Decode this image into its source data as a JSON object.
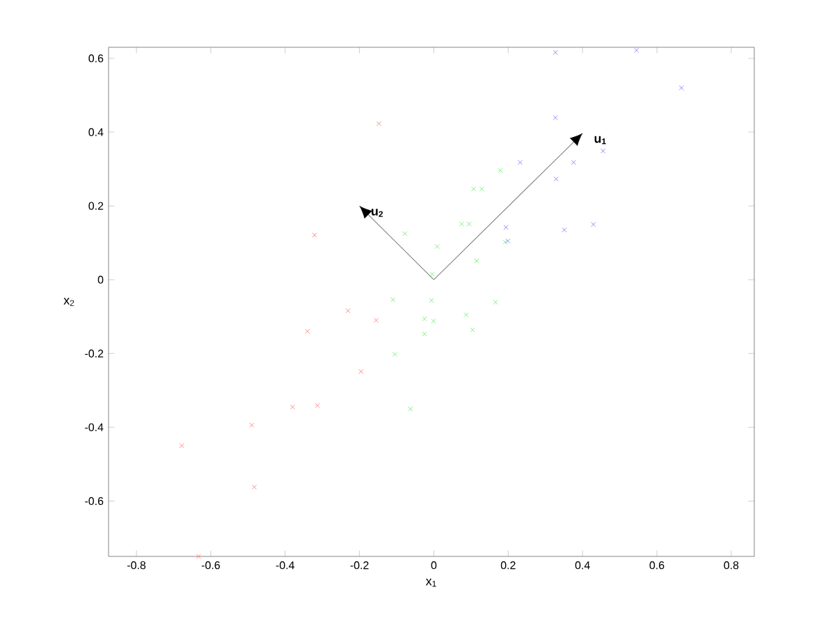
{
  "chart_data": {
    "type": "scatter",
    "xlabel": "x$_{1}$",
    "ylabel": "x$_{2}$",
    "marker": "cross",
    "xlim": [
      -0.875,
      0.862
    ],
    "ylim": [
      -0.75,
      0.63
    ],
    "xticks": [
      -0.8,
      -0.6,
      -0.4,
      -0.2,
      0,
      0.2,
      0.4,
      0.6,
      0.8
    ],
    "yticks": [
      -0.6,
      -0.4,
      -0.2,
      0,
      0.2,
      0.4,
      0.6
    ],
    "series": [
      {
        "color": "#ff7070",
        "x": [
          -0.148,
          -0.321,
          -0.231,
          -0.155,
          -0.34,
          -0.196,
          -0.38,
          -0.313,
          -0.49,
          -0.678,
          -0.483,
          -0.633
        ],
        "values": [
          0.423,
          0.121,
          -0.084,
          -0.11,
          -0.14,
          -0.249,
          -0.345,
          -0.341,
          -0.394,
          -0.45,
          -0.562,
          -0.75
        ]
      },
      {
        "color": "#60ee60",
        "x": [
          -0.078,
          0.009,
          -0.004,
          0.179,
          0.107,
          0.129,
          0.075,
          0.095,
          0.115,
          0.192,
          -0.11,
          -0.006,
          -0.025,
          -0.001,
          -0.025,
          -0.105,
          -0.063,
          0.166,
          0.087,
          0.104
        ],
        "values": [
          0.125,
          0.09,
          0.015,
          0.296,
          0.246,
          0.246,
          0.151,
          0.151,
          0.051,
          0.102,
          -0.054,
          -0.056,
          -0.106,
          -0.112,
          -0.147,
          -0.202,
          -0.35,
          -0.061,
          -0.095,
          -0.136
        ]
      },
      {
        "color": "#7070ff",
        "x": [
          0.327,
          0.545,
          0.666,
          0.327,
          0.455,
          0.376,
          0.232,
          0.329,
          0.194,
          0.351,
          0.429,
          0.199
        ],
        "values": [
          0.616,
          0.622,
          0.52,
          0.439,
          0.349,
          0.318,
          0.318,
          0.273,
          0.142,
          0.135,
          0.15,
          0.105
        ]
      },
      {
        "type": "line",
        "marker": "none",
        "color": "#888888",
        "x": [
          0,
          0.4
        ],
        "values": [
          0,
          0.397
        ]
      },
      {
        "type": "line",
        "marker": "none",
        "color": "#888888",
        "x": [
          0,
          -0.2
        ],
        "values": [
          0,
          0.2
        ]
      }
    ],
    "annotations": [
      {
        "text": "u$_{1}$",
        "x": 0.4,
        "y": 0.397
      },
      {
        "text": "u$_{2}$",
        "x": -0.2,
        "y": 0.2
      }
    ]
  }
}
